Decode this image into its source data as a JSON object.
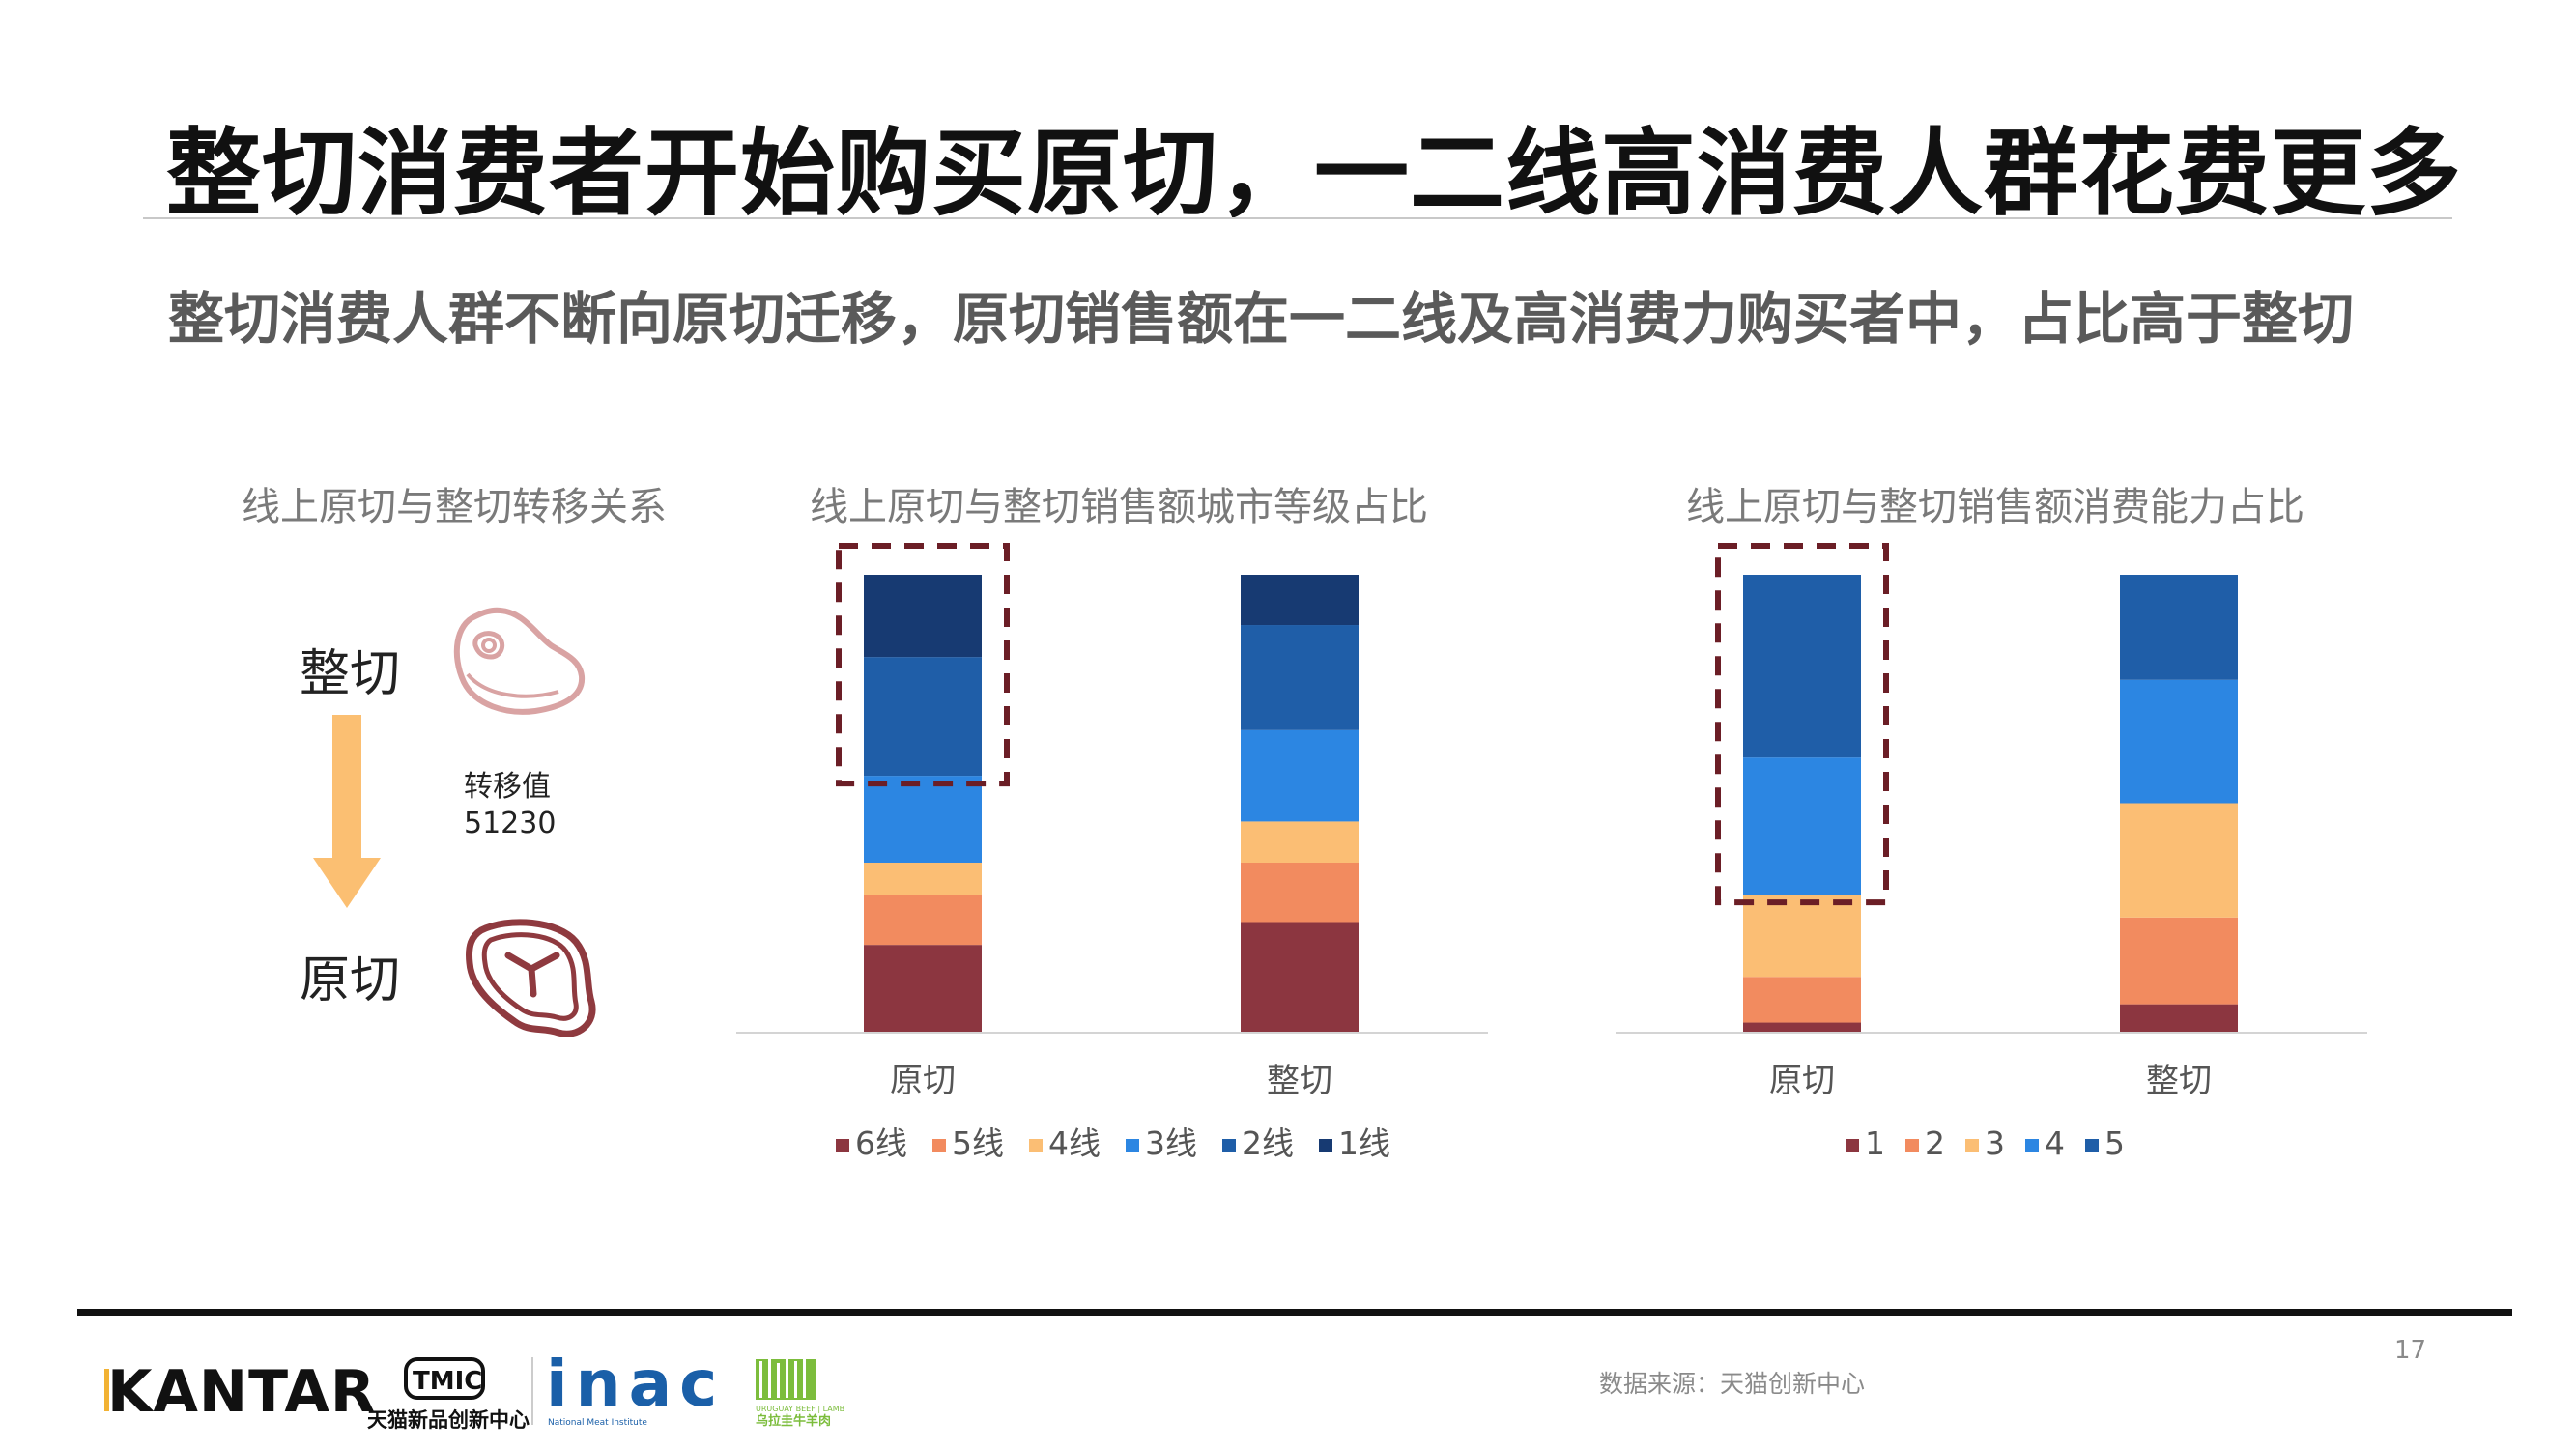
{
  "page": {
    "title": "整切消费者开始购买原切，一二线高消费人群花费更多",
    "subtitle": "整切消费人群不断向原切迁移，原切销售额在一二线及高消费力购买者中，占比高于整切",
    "page_number": "17",
    "source": "数据来源：天猫创新中心"
  },
  "transfer_panel": {
    "title": "线上原切与整切转移关系",
    "from_label": "整切",
    "to_label": "原切",
    "value_label": "转移值",
    "value": "51230",
    "icons": {
      "from": "steak-outline-icon",
      "to": "ribeye-outline-icon",
      "arrow": "down-arrow-icon"
    },
    "colors": {
      "arrow": "#fbbf72",
      "from_icon": "#d9a3a3",
      "to_icon": "#8f3a3f"
    }
  },
  "logos": {
    "kantar": "KANTAR",
    "tmic": "TMIC",
    "tmic_caption": "天猫新品创新中心",
    "inac": "inac",
    "inac_caption": "National Meat Institute",
    "uruguay_top": "URUGUAY BEEF | LAMB",
    "uruguay_caption": "乌拉圭牛羊肉"
  },
  "chart_data": [
    {
      "type": "bar",
      "stacked": true,
      "percent_stacked": true,
      "title": "线上原切与整切销售额城市等级占比",
      "categories": [
        "原切",
        "整切"
      ],
      "series": [
        {
          "name": "6线",
          "color": "#8c3640",
          "values": [
            19,
            24
          ]
        },
        {
          "name": "5线",
          "color": "#f28b5f",
          "values": [
            11,
            13
          ]
        },
        {
          "name": "4线",
          "color": "#fbbe74",
          "values": [
            7,
            9
          ]
        },
        {
          "name": "3线",
          "color": "#2c86e2",
          "values": [
            19,
            20
          ]
        },
        {
          "name": "2线",
          "color": "#1f5ea8",
          "values": [
            26,
            23
          ]
        },
        {
          "name": "1线",
          "color": "#173a72",
          "values": [
            18,
            11
          ]
        }
      ],
      "ylim": [
        0,
        100
      ],
      "legend": "bottom",
      "grid": false,
      "highlight": {
        "category": "原切",
        "series": [
          "2线",
          "1线"
        ],
        "style": "dashed-box"
      }
    },
    {
      "type": "bar",
      "stacked": true,
      "percent_stacked": true,
      "title": "线上原切与整切销售额消费能力占比",
      "categories": [
        "原切",
        "整切"
      ],
      "series": [
        {
          "name": "1",
          "color": "#8c3640",
          "values": [
            2,
            6
          ]
        },
        {
          "name": "2",
          "color": "#f28b5f",
          "values": [
            10,
            19
          ]
        },
        {
          "name": "3",
          "color": "#fbbe74",
          "values": [
            18,
            25
          ]
        },
        {
          "name": "4",
          "color": "#2c86e2",
          "values": [
            30,
            27
          ]
        },
        {
          "name": "5",
          "color": "#1f5ea8",
          "values": [
            40,
            23
          ]
        }
      ],
      "ylim": [
        0,
        100
      ],
      "legend": "bottom",
      "grid": false,
      "highlight": {
        "category": "原切",
        "series": [
          "4",
          "5"
        ],
        "style": "dashed-box"
      }
    }
  ]
}
